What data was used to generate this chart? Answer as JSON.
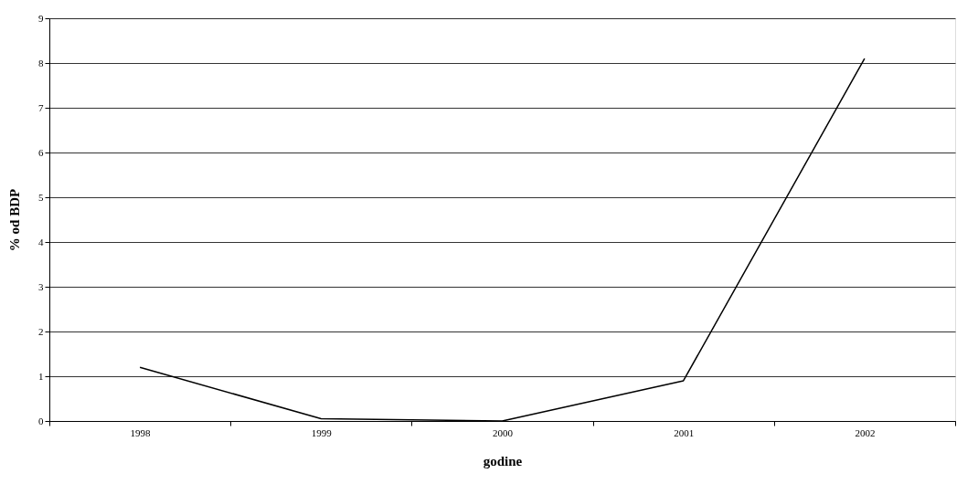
{
  "chart_data": {
    "type": "line",
    "xlabel": "godine",
    "ylabel": "% od BDP",
    "categories": [
      "1998",
      "1999",
      "2000",
      "2001",
      "2002"
    ],
    "series": [
      {
        "color": "#000000",
        "values": [
          1.2,
          0.05,
          0.0,
          0.9,
          8.1
        ]
      }
    ],
    "ylim": [
      0,
      9
    ],
    "yticks": [
      0,
      1,
      2,
      3,
      4,
      5,
      6,
      7,
      8,
      9
    ],
    "grid": "y",
    "marker": "none",
    "line_style": "solid"
  }
}
